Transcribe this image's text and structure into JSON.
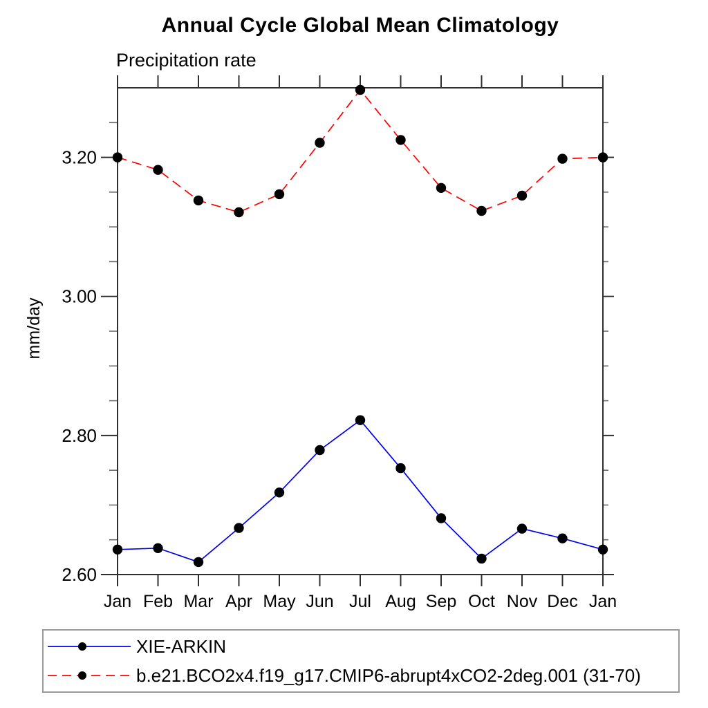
{
  "title": "Annual Cycle Global Mean Climatology",
  "subtitle": "Precipitation rate",
  "colors": {
    "axis": "#2f2f2f",
    "minor_tick": "#6a6a6a",
    "marker": "#000000",
    "legend_border": "#9a9a9a",
    "obs_line": "#0000ee",
    "model_line": "#ff0000"
  },
  "chart_data": {
    "type": "line",
    "title": "Annual Cycle Global Mean Climatology",
    "subtitle": "Precipitation rate",
    "ylabel": "mm/day",
    "xlabel": "",
    "categories": [
      "Jan",
      "Feb",
      "Mar",
      "Apr",
      "May",
      "Jun",
      "Jul",
      "Aug",
      "Sep",
      "Oct",
      "Nov",
      "Dec",
      "Jan"
    ],
    "ylim": [
      2.6,
      3.3
    ],
    "yticks": [
      2.6,
      2.8,
      3.0,
      3.2
    ],
    "ytick_labels": [
      "2.60",
      "2.80",
      "3.00",
      "3.20"
    ],
    "minor_tick_step": 0.05,
    "grid": false,
    "legend_position": "bottom",
    "series": [
      {
        "name": "XIE-ARKIN",
        "color": "#0000ee",
        "line_style": "solid",
        "marker": "filled-circle",
        "marker_color": "#000000",
        "values": [
          2.636,
          2.638,
          2.618,
          2.667,
          2.718,
          2.779,
          2.822,
          2.753,
          2.681,
          2.623,
          2.666,
          2.652,
          2.636
        ]
      },
      {
        "name": "b.e21.BCO2x4.f19_g17.CMIP6-abrupt4xCO2-2deg.001 (31-70)",
        "color": "#ff0000",
        "line_style": "dashed",
        "marker": "filled-circle",
        "marker_color": "#000000",
        "values": [
          3.2,
          3.182,
          3.138,
          3.121,
          3.147,
          3.221,
          3.297,
          3.225,
          3.156,
          3.123,
          3.145,
          3.198,
          3.2
        ]
      }
    ]
  }
}
